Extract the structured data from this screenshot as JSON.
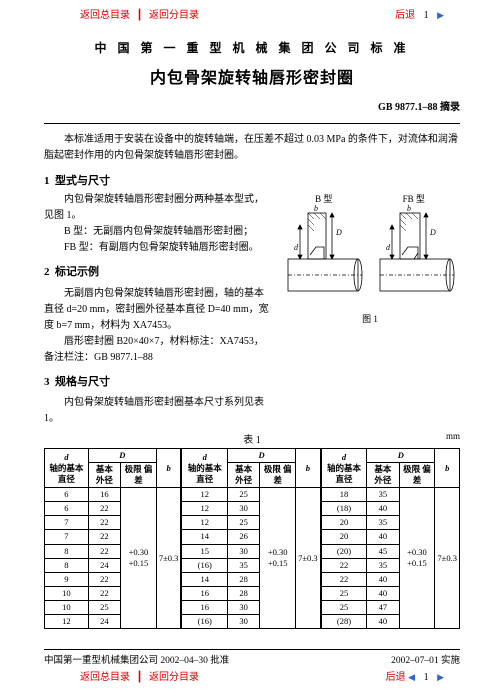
{
  "nav": {
    "back_main": "返回总目录",
    "back_sub": "返回分目录",
    "back": "后退",
    "page_top": "1",
    "page_bottom": "1"
  },
  "header": {
    "org": "中 国 第 一 重 型 机 械 集 团 公 司 标 准",
    "title": "内包骨架旋转轴唇形密封圈",
    "std": "GB 9877.1–88 摘录"
  },
  "intro": "本标准适用于安装在设备中的旋转轴端，在压差不超过 0.03 MPa 的条件下，对流体和润滑脂起密封作用的内包骨架旋转轴唇形密封圈。",
  "sec1": {
    "num": "1",
    "title": "型式与尺寸",
    "p1": "内包骨架旋转轴唇形密封圈分两种基本型式，见图 1。",
    "p2": "B 型：无副唇内包骨架旋转轴唇形密封圈；",
    "p3": "FB 型：有副唇内包骨架旋转轴唇形密封圈。"
  },
  "sec2": {
    "num": "2",
    "title": "标记示例",
    "p1": "无副唇内包骨架旋转轴唇形密封圈，轴的基本直径 d=20 mm，密封圈外径基本直径 D=40 mm，宽度 b=7 mm，材料为 XA7453。",
    "p2": "唇形密封圈  B20×40×7，材料标注：XA7453，备注栏注：GB 9877.1–88"
  },
  "sec3": {
    "num": "3",
    "title": "规格与尺寸",
    "p1": "内包骨架旋转轴唇形密封圈基本尺寸系列见表 1。"
  },
  "fig": {
    "left_label": "B 型",
    "right_label": "FB 型",
    "caption": "图 1"
  },
  "table": {
    "caption": "表 1",
    "unit": "mm",
    "cols": {
      "d": "d",
      "d_sub": "轴的基本\n直径",
      "D": "D",
      "D_basic": "基本\n外径",
      "D_tol": "极限\n偏差",
      "b": "b"
    },
    "g1": {
      "d": [
        "6",
        "6",
        "7",
        "7",
        "8",
        "8",
        "9",
        "10",
        "10",
        "12"
      ],
      "D": [
        "16",
        "22",
        "22",
        "22",
        "22",
        "24",
        "22",
        "22",
        "25",
        "24"
      ],
      "tol": "+0.30\n+0.15",
      "b": "7±0.3"
    },
    "g2": {
      "d": [
        "",
        "",
        "",
        "",
        "",
        "",
        "",
        "",
        "",
        ""
      ],
      "D": [
        "12",
        "12",
        "12",
        "14",
        "15",
        "(16)",
        "14",
        "16",
        "16",
        "(16)"
      ],
      "D2": [
        "25",
        "30",
        "25",
        "26",
        "30",
        "35",
        "28",
        "28",
        "30",
        "30"
      ],
      "tol": "+0.30\n+0.15",
      "b": "7±0.3"
    },
    "g3": {
      "d": [
        "",
        "",
        "",
        "",
        "",
        "",
        "",
        "",
        "",
        ""
      ],
      "dv": [
        "18",
        "(18)",
        "20",
        "20",
        "(20)",
        "22",
        "22",
        "25",
        "25",
        "(28)"
      ],
      "D": [
        "35",
        "40",
        "35",
        "40",
        "45",
        "35",
        "40",
        "40",
        "47",
        "40"
      ],
      "tol": "+0.30\n+0.15",
      "b": "7±0.3"
    }
  },
  "footer": {
    "left": "中国第一重型机械集团公司 2002–04–30 批准",
    "right": "2002–07–01 实施"
  },
  "colors": {
    "red": "#d00",
    "blue": "#3366cc"
  }
}
